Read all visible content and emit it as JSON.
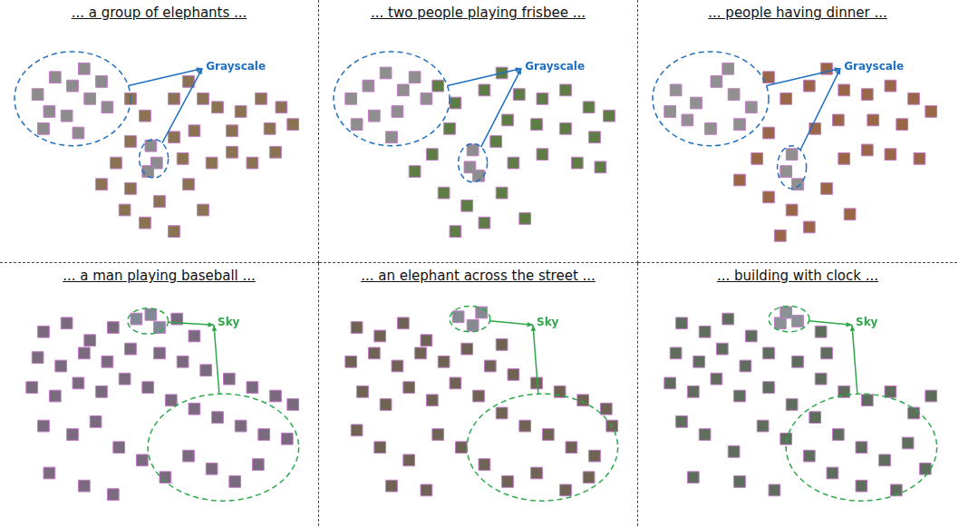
{
  "chart_data": [
    {
      "type": "scatter",
      "title": "... a group of elephants ...",
      "marker": "square",
      "grid": false,
      "tick_labels": false,
      "xlim": [
        0,
        100
      ],
      "ylim": [
        0,
        100
      ],
      "series": [
        {
          "color": "#8c8c8c",
          "x": [
            8,
            14,
            20,
            26,
            12,
            18,
            24,
            30,
            10,
            22,
            32,
            47,
            49,
            46
          ],
          "y": [
            72,
            80,
            76,
            70,
            64,
            62,
            84,
            78,
            56,
            54,
            66,
            48,
            40,
            36
          ]
        },
        {
          "color": "#8a7352",
          "x": [
            40,
            45,
            55,
            60,
            65,
            70,
            78,
            85,
            92,
            96,
            88,
            75,
            62,
            55,
            40,
            35,
            30,
            40,
            50,
            45,
            55,
            60,
            68,
            75,
            82,
            90,
            58,
            38,
            65
          ],
          "y": [
            70,
            62,
            70,
            78,
            70,
            66,
            64,
            70,
            66,
            58,
            56,
            55,
            55,
            52,
            50,
            40,
            30,
            28,
            22,
            12,
            8,
            30,
            40,
            45,
            40,
            45,
            42,
            18,
            18
          ]
        }
      ],
      "annotations": [
        {
          "text": "Grayscale",
          "color": "#1f6fbf",
          "line_style": "dashed",
          "x": 66,
          "y": 85,
          "regions": [
            {
              "x": 20,
              "y": 70,
              "rx": 20,
              "ry": 22
            },
            {
              "x": 48,
              "y": 42,
              "rx": 5,
              "ry": 9
            }
          ]
        }
      ]
    },
    {
      "type": "scatter",
      "title": "... two people playing frisbee ...",
      "marker": "square",
      "grid": false,
      "tick_labels": false,
      "xlim": [
        0,
        100
      ],
      "ylim": [
        0,
        100
      ],
      "series": [
        {
          "color": "#8e8e8e",
          "x": [
            6,
            12,
            18,
            24,
            14,
            22,
            28,
            32,
            8,
            20,
            48,
            47,
            50
          ],
          "y": [
            70,
            76,
            82,
            74,
            62,
            64,
            80,
            70,
            58,
            52,
            46,
            38,
            34
          ]
        },
        {
          "color": "#5e7d45",
          "x": [
            36,
            42,
            52,
            58,
            64,
            72,
            80,
            88,
            95,
            90,
            80,
            70,
            60,
            40,
            34,
            28,
            38,
            46,
            52,
            58,
            62,
            72,
            84,
            92,
            42,
            66,
            56
          ],
          "y": [
            76,
            68,
            74,
            82,
            72,
            70,
            74,
            66,
            62,
            52,
            56,
            58,
            60,
            56,
            44,
            36,
            26,
            20,
            12,
            26,
            40,
            44,
            40,
            38,
            8,
            14,
            50
          ]
        }
      ],
      "annotations": [
        {
          "text": "Grayscale",
          "color": "#1f6fbf",
          "line_style": "dashed",
          "x": 66,
          "y": 85,
          "regions": [
            {
              "x": 20,
              "y": 70,
              "rx": 20,
              "ry": 22
            },
            {
              "x": 48,
              "y": 40,
              "rx": 5,
              "ry": 9
            }
          ]
        }
      ]
    },
    {
      "type": "scatter",
      "title": "... people having dinner ...",
      "marker": "square",
      "grid": false,
      "tick_labels": false,
      "xlim": [
        0,
        100
      ],
      "ylim": [
        0,
        100
      ],
      "series": [
        {
          "color": "#909090",
          "x": [
            8,
            15,
            22,
            28,
            12,
            20,
            26,
            34,
            6,
            30,
            48,
            46,
            50
          ],
          "y": [
            74,
            68,
            78,
            72,
            60,
            56,
            84,
            66,
            64,
            58,
            44,
            36,
            30
          ]
        },
        {
          "color": "#9a6648",
          "x": [
            40,
            46,
            54,
            60,
            66,
            74,
            82,
            90,
            96,
            86,
            76,
            64,
            56,
            40,
            36,
            30,
            40,
            48,
            54,
            60,
            66,
            74,
            82,
            92,
            44,
            68
          ],
          "y": [
            80,
            70,
            76,
            84,
            74,
            72,
            76,
            70,
            64,
            58,
            60,
            60,
            56,
            54,
            42,
            32,
            24,
            18,
            10,
            28,
            42,
            46,
            44,
            42,
            6,
            16
          ]
        }
      ],
      "annotations": [
        {
          "text": "Grayscale",
          "color": "#1f6fbf",
          "line_style": "dashed",
          "x": 66,
          "y": 85,
          "regions": [
            {
              "x": 20,
              "y": 70,
              "rx": 20,
              "ry": 22
            },
            {
              "x": 48,
              "y": 38,
              "rx": 5,
              "ry": 10
            }
          ]
        }
      ]
    },
    {
      "type": "scatter",
      "title": "... a man playing baseball ...",
      "marker": "square",
      "grid": false,
      "tick_labels": false,
      "xlim": [
        0,
        100
      ],
      "ylim": [
        0,
        100
      ],
      "series": [
        {
          "color": "#7f8a96",
          "x": [
            42,
            47,
            50
          ],
          "y": [
            90,
            92,
            86
          ]
        },
        {
          "color": "#7a6a7e",
          "x": [
            10,
            18,
            26,
            34,
            56,
            62,
            8,
            16,
            24,
            32,
            40,
            50,
            58,
            66,
            74,
            82,
            90,
            96,
            6,
            14,
            22,
            30,
            38,
            46,
            54,
            62,
            70,
            78,
            86,
            94,
            10,
            20,
            28,
            36,
            44,
            52,
            60,
            68,
            76,
            84,
            12,
            24,
            34
          ],
          "y": [
            84,
            88,
            80,
            86,
            90,
            82,
            72,
            68,
            74,
            70,
            76,
            74,
            70,
            66,
            62,
            58,
            54,
            50,
            58,
            54,
            60,
            56,
            62,
            58,
            52,
            48,
            44,
            40,
            36,
            34,
            40,
            36,
            42,
            30,
            24,
            16,
            26,
            20,
            14,
            22,
            18,
            12,
            8
          ]
        }
      ],
      "annotations": [
        {
          "text": "Sky",
          "color": "#2ca84a",
          "line_style": "dashed",
          "x": 70,
          "y": 88,
          "regions": [
            {
              "x": 46,
              "y": 89,
              "rx": 7,
              "ry": 6
            },
            {
              "x": 72,
              "y": 30,
              "rx": 26,
              "ry": 25
            }
          ]
        }
      ]
    },
    {
      "type": "scatter",
      "title": "... an elephant across the street ...",
      "marker": "square",
      "grid": false,
      "tick_labels": false,
      "xlim": [
        0,
        100
      ],
      "ylim": [
        0,
        100
      ],
      "series": [
        {
          "color": "#858a90",
          "x": [
            43,
            48,
            51
          ],
          "y": [
            91,
            87,
            93
          ]
        },
        {
          "color": "#6f6354",
          "x": [
            8,
            16,
            24,
            32,
            58,
            6,
            14,
            22,
            30,
            38,
            46,
            54,
            62,
            70,
            78,
            86,
            94,
            10,
            18,
            26,
            34,
            42,
            50,
            58,
            66,
            74,
            82,
            90,
            96,
            8,
            16,
            26,
            36,
            44,
            52,
            60,
            70,
            80,
            88,
            20,
            32
          ],
          "y": [
            86,
            82,
            88,
            80,
            78,
            70,
            74,
            68,
            74,
            70,
            76,
            68,
            64,
            60,
            56,
            52,
            48,
            56,
            50,
            58,
            52,
            60,
            54,
            46,
            40,
            36,
            30,
            26,
            40,
            38,
            30,
            24,
            36,
            30,
            22,
            14,
            18,
            10,
            16,
            12,
            10
          ]
        }
      ],
      "annotations": [
        {
          "text": "Sky",
          "color": "#2ca84a",
          "line_style": "dashed",
          "x": 70,
          "y": 88,
          "regions": [
            {
              "x": 47,
              "y": 90,
              "rx": 7,
              "ry": 6
            },
            {
              "x": 72,
              "y": 30,
              "rx": 26,
              "ry": 25
            }
          ]
        }
      ]
    },
    {
      "type": "scatter",
      "title": "... building with clock ...",
      "marker": "square",
      "grid": false,
      "tick_labels": false,
      "xlim": [
        0,
        100
      ],
      "ylim": [
        0,
        100
      ],
      "series": [
        {
          "color": "#8a9296",
          "x": [
            44,
            46,
            50
          ],
          "y": [
            88,
            93,
            89
          ]
        },
        {
          "color": "#5f6e5c",
          "x": [
            10,
            18,
            26,
            34,
            58,
            8,
            16,
            24,
            32,
            40,
            50,
            60,
            58,
            66,
            74,
            82,
            90,
            96,
            6,
            14,
            22,
            30,
            40,
            48,
            56,
            64,
            72,
            80,
            88,
            94,
            10,
            18,
            28,
            38,
            46,
            54,
            62,
            72,
            84,
            14,
            30,
            42
          ],
          "y": [
            88,
            84,
            90,
            82,
            84,
            74,
            70,
            76,
            68,
            74,
            70,
            74,
            62,
            56,
            52,
            56,
            46,
            54,
            60,
            56,
            62,
            54,
            58,
            50,
            44,
            36,
            30,
            24,
            32,
            20,
            42,
            36,
            28,
            40,
            34,
            26,
            18,
            12,
            10,
            16,
            14,
            10
          ]
        }
      ],
      "annotations": [
        {
          "text": "Sky",
          "color": "#2ca84a",
          "line_style": "dashed",
          "x": 70,
          "y": 88,
          "regions": [
            {
              "x": 47,
              "y": 90,
              "rx": 7,
              "ry": 6
            },
            {
              "x": 72,
              "y": 30,
              "rx": 26,
              "ry": 25
            }
          ]
        }
      ]
    }
  ]
}
